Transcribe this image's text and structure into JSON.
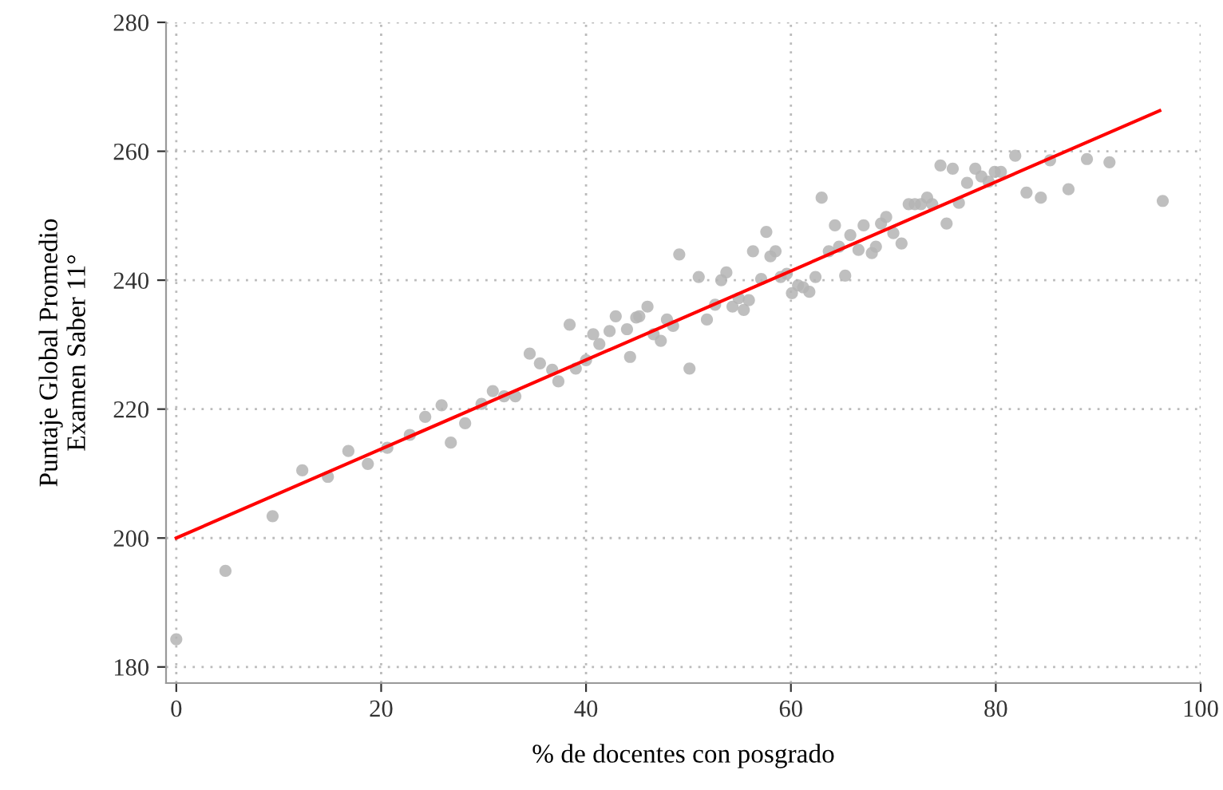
{
  "chart_data": {
    "type": "scatter",
    "xlabel": "% de docentes con posgrado",
    "ylabel": "Puntaje Global Promedio\nExamen Saber 11°",
    "xlim": [
      -1,
      100
    ],
    "ylim": [
      177.5,
      280
    ],
    "xticks": [
      0,
      20,
      40,
      60,
      80,
      100
    ],
    "yticks": [
      180,
      200,
      220,
      240,
      260,
      280
    ],
    "grid": true,
    "marker": "circle",
    "series": [
      {
        "color": "#b4b4b4",
        "x": [
          0,
          4.8,
          9.4,
          12.3,
          14.8,
          16.8,
          18.7,
          20.6,
          22.8,
          24.3,
          25.9,
          26.8,
          28.2,
          29.8,
          30.9,
          32,
          33.1,
          34.5,
          35.5,
          36.7,
          37.3,
          38.4,
          39,
          40,
          40.7,
          41.3,
          42.3,
          42.9,
          44,
          44.3,
          44.9,
          45.2,
          46,
          46.6,
          47.3,
          47.9,
          48.5,
          49.1,
          50.1,
          51,
          51.8,
          52.6,
          53.2,
          53.7,
          54.3,
          54.9,
          55.4,
          55.9,
          56.3,
          57.1,
          57.6,
          58,
          58.5,
          59,
          59.6,
          60.1,
          60.7,
          61.2,
          61.8,
          62.4,
          63,
          63.7,
          64.3,
          64.7,
          65.3,
          65.8,
          66.6,
          67.1,
          67.9,
          68.3,
          68.8,
          69.3,
          70,
          70.8,
          71.5,
          72.1,
          72.7,
          73.3,
          73.8,
          74.6,
          75.2,
          75.8,
          76.4,
          77.2,
          78,
          78.6,
          79.3,
          79.9,
          80.5,
          81.9,
          83,
          84.4,
          85.3,
          87.1,
          88.9,
          91.1,
          96.3
        ],
        "values": [
          184.3,
          194.9,
          203.4,
          210.5,
          209.5,
          213.5,
          211.5,
          214,
          216,
          218.8,
          220.6,
          214.8,
          217.8,
          220.8,
          222.8,
          222,
          222,
          228.6,
          227.1,
          226.1,
          224.3,
          233.1,
          226.3,
          227.6,
          231.6,
          230.1,
          232.1,
          234.4,
          232.4,
          228.1,
          234.2,
          234.4,
          235.9,
          231.6,
          230.6,
          233.9,
          232.9,
          244,
          226.3,
          240.5,
          233.9,
          236.2,
          240,
          241.2,
          235.9,
          237.2,
          235.4,
          236.9,
          244.5,
          240.2,
          247.5,
          243.7,
          244.5,
          240.5,
          241,
          238,
          239.2,
          238.9,
          238.2,
          240.5,
          252.8,
          244.5,
          248.5,
          245.2,
          240.7,
          247,
          244.7,
          248.5,
          244.2,
          245.2,
          248.8,
          249.8,
          247.3,
          245.7,
          251.8,
          251.8,
          251.8,
          252.8,
          251.8,
          257.8,
          248.8,
          257.3,
          252,
          255.1,
          257.3,
          256.1,
          255.3,
          256.8,
          256.8,
          259.3,
          253.6,
          252.8,
          258.6,
          254.1,
          258.8,
          258.3,
          252.3
        ]
      },
      {
        "type": "line",
        "color": "#ff0000",
        "marker": "none",
        "x": [
          0,
          96
        ],
        "values": [
          200,
          266.3
        ]
      }
    ]
  }
}
